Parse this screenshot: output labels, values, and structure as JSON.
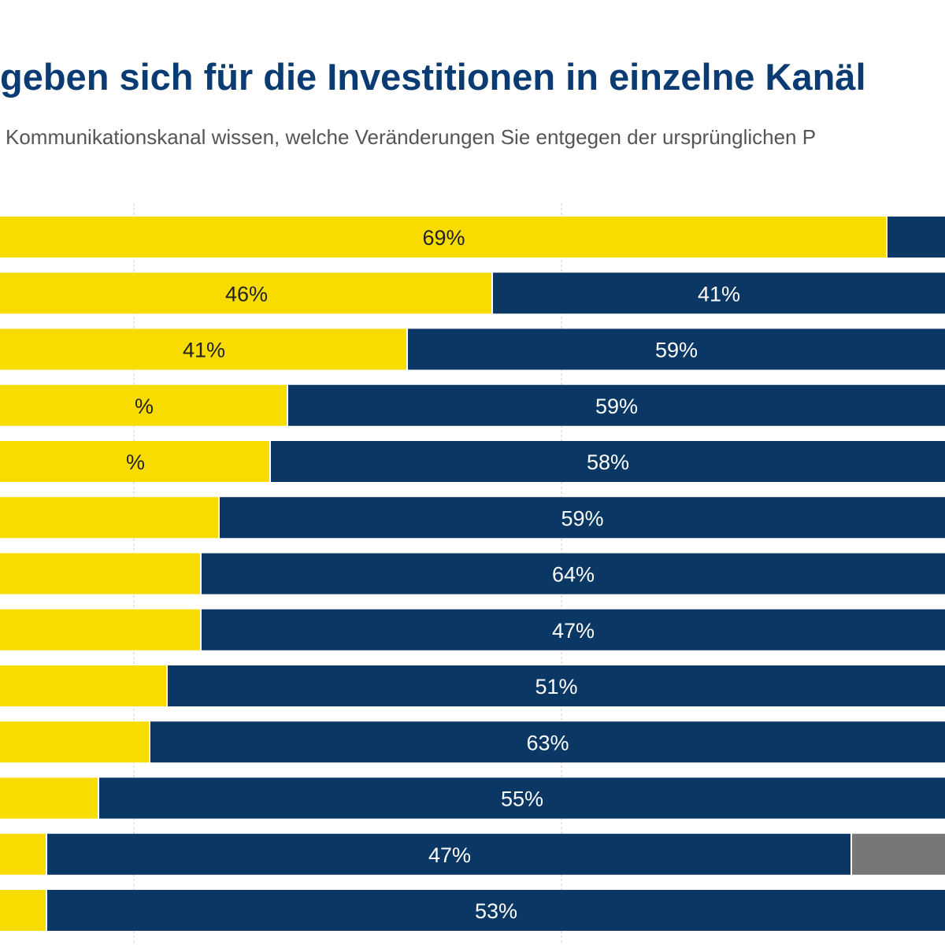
{
  "title": "geben sich für die Investitionen in einzelne Kanäl",
  "subtitle": "Kommunikationskanal wissen, welche Veränderungen Sie entgegen der ursprünglichen P",
  "colors": {
    "yellow": "#f8dc00",
    "navy": "#0a3763",
    "gray": "#777777",
    "grid": "#cccccc"
  },
  "chart_data": {
    "type": "bar",
    "orientation": "horizontal",
    "stacked": true,
    "grid": true,
    "rows": [
      {
        "segments": [
          {
            "color": "yellow",
            "label": "69%",
            "end": 1127
          },
          {
            "color": "navy",
            "label": "",
            "end": 1200
          }
        ]
      },
      {
        "segments": [
          {
            "color": "yellow",
            "label": "46%",
            "end": 626
          },
          {
            "color": "navy",
            "label": "41%",
            "end": 1200
          }
        ]
      },
      {
        "segments": [
          {
            "color": "yellow",
            "label": "41%",
            "end": 518
          },
          {
            "color": "navy",
            "label": "59%",
            "end": 1200
          }
        ]
      },
      {
        "segments": [
          {
            "color": "yellow",
            "label": "%",
            "end": 366
          },
          {
            "color": "navy",
            "label": "59%",
            "end": 1200
          }
        ]
      },
      {
        "segments": [
          {
            "color": "yellow",
            "label": "%",
            "end": 344
          },
          {
            "color": "navy",
            "label": "58%",
            "end": 1200
          }
        ]
      },
      {
        "segments": [
          {
            "color": "yellow",
            "label": "",
            "end": 279
          },
          {
            "color": "navy",
            "label": "59%",
            "end": 1200
          }
        ]
      },
      {
        "segments": [
          {
            "color": "yellow",
            "label": "",
            "end": 256
          },
          {
            "color": "navy",
            "label": "64%",
            "end": 1200
          }
        ]
      },
      {
        "segments": [
          {
            "color": "yellow",
            "label": "",
            "end": 256
          },
          {
            "color": "navy",
            "label": "47%",
            "end": 1200
          }
        ]
      },
      {
        "segments": [
          {
            "color": "yellow",
            "label": "",
            "end": 213
          },
          {
            "color": "navy",
            "label": "51%",
            "end": 1200
          }
        ]
      },
      {
        "segments": [
          {
            "color": "yellow",
            "label": "",
            "end": 191
          },
          {
            "color": "navy",
            "label": "63%",
            "end": 1200
          }
        ]
      },
      {
        "segments": [
          {
            "color": "yellow",
            "label": "",
            "end": 126
          },
          {
            "color": "navy",
            "label": "55%",
            "end": 1200
          }
        ]
      },
      {
        "segments": [
          {
            "color": "yellow",
            "label": "",
            "end": 60
          },
          {
            "color": "navy",
            "label": "47%",
            "end": 1082
          },
          {
            "color": "gray",
            "label": "",
            "end": 1200
          }
        ]
      },
      {
        "segments": [
          {
            "color": "yellow",
            "label": "",
            "end": 60
          },
          {
            "color": "navy",
            "label": "53%",
            "end": 1200
          }
        ]
      }
    ]
  }
}
